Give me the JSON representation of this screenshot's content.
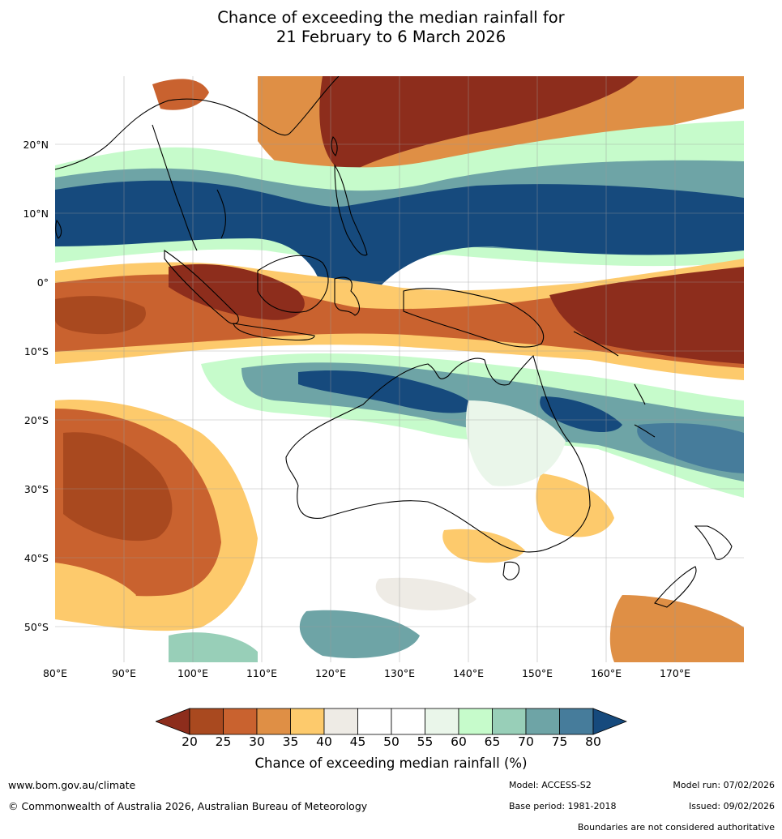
{
  "title": {
    "line1": "Chance of exceeding the median rainfall for",
    "line2": "21 February to 6 March 2026"
  },
  "map": {
    "lat_labels": [
      "20°N",
      "10°N",
      "0°",
      "10°S",
      "20°S",
      "30°S",
      "40°S",
      "50°S"
    ],
    "lon_labels": [
      "80°E",
      "90°E",
      "100°E",
      "110°E",
      "120°E",
      "130°E",
      "140°E",
      "150°E",
      "160°E",
      "170°E"
    ],
    "grid": true,
    "region": "Indian Ocean, Maritime Continent, Australia, Western Pacific"
  },
  "colorbar": {
    "ticks": [
      "20",
      "25",
      "30",
      "35",
      "40",
      "45",
      "50",
      "55",
      "60",
      "65",
      "70",
      "75",
      "80"
    ],
    "colors": [
      "#a9491f",
      "#c9622f",
      "#df8f45",
      "#fdca6c",
      "#eeebe5",
      "#ffffff",
      "#ffffff",
      "#eaf6ea",
      "#c6fbcb",
      "#98cfb8",
      "#6ea4a6",
      "#467c9b"
    ],
    "low_extend_color": "#8d2d1c",
    "high_extend_color": "#164a7d",
    "label": "Chance of exceeding median rainfall (%)"
  },
  "footer": {
    "url": "www.bom.gov.au/climate",
    "copyright": "© Commonwealth of Australia 2026, Australian Bureau of Meteorology",
    "model": "Model: ACCESS-S2",
    "base_period": "Base period: 1981-2018",
    "model_run": "Model run: 07/02/2026",
    "issued": "Issued: 09/02/2026",
    "disclaimer": "Boundaries are not considered authoritative"
  }
}
